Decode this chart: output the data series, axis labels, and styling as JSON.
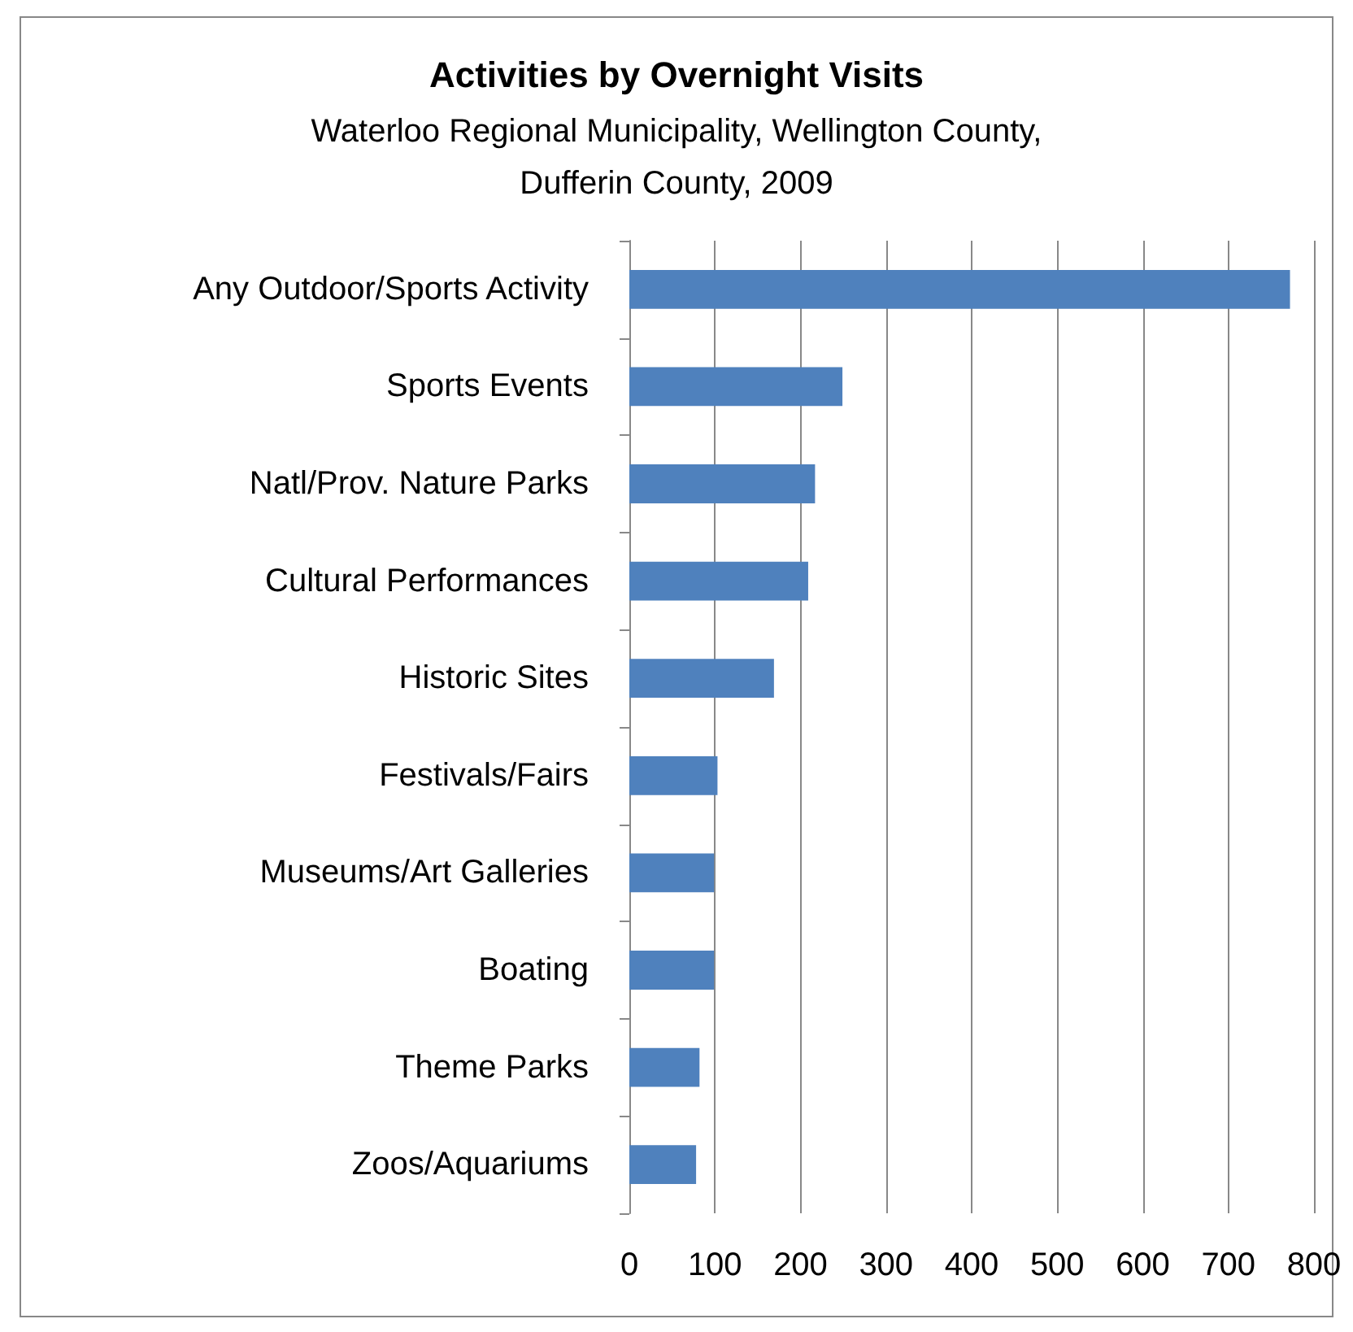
{
  "chart_data": {
    "type": "bar",
    "orientation": "horizontal",
    "title": "Activities by Overnight Visits",
    "subtitle": "Waterloo Regional Municipality, Wellington County,\nDufferin County, 2009",
    "categories": [
      "Any Outdoor/Sports Activity",
      "Sports Events",
      "Natl/Prov. Nature Parks",
      "Cultural Performances",
      "Historic Sites",
      "Festivals/Fairs",
      "Museums/Art Galleries",
      "Boating",
      "Theme Parks",
      "Zoos/Aquariums"
    ],
    "values": [
      772,
      249,
      217,
      209,
      169,
      103,
      99,
      99,
      82,
      78
    ],
    "color": "#4f81bd",
    "xlim": [
      0,
      800
    ],
    "xticks": [
      0,
      100,
      200,
      300,
      400,
      500,
      600,
      700,
      800
    ],
    "grid": "x"
  }
}
